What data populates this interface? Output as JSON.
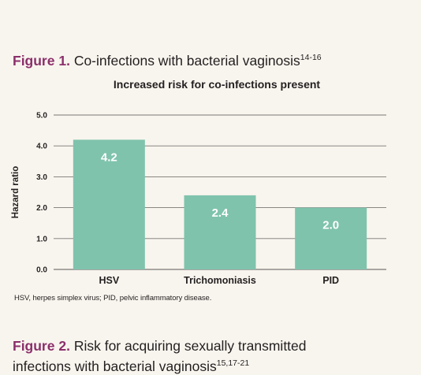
{
  "figure1": {
    "label": "Figure 1.",
    "title": "Co-infections with bacterial vaginosis",
    "refs": "14-16"
  },
  "footnote": "HSV, herpes simplex virus; PID, pelvic inflammatory disease.",
  "figure2": {
    "label": "Figure 2.",
    "title_line1": "Risk for acquiring sexually transmitted",
    "title_line2": "infections with bacterial vaginosis",
    "refs": "15,17-21"
  },
  "colors": {
    "bar": "#7fc3ad",
    "label_text": "#ffffff",
    "accent": "#8b2f6b",
    "grid": "#7a7675"
  },
  "chart_data": {
    "type": "bar",
    "title": "Increased risk for co-infections present",
    "xlabel": "",
    "ylabel": "Hazard ratio",
    "categories": [
      "HSV",
      "Trichomoniasis",
      "PID"
    ],
    "values": [
      4.2,
      2.4,
      2.0
    ],
    "data_labels": [
      "4.2",
      "2.4",
      "2.0"
    ],
    "ylim": [
      0,
      5
    ],
    "yticks": [
      "0.0",
      "1.0",
      "2.0",
      "3.0",
      "4.0",
      "5.0"
    ],
    "grid": true,
    "legend": "none"
  }
}
